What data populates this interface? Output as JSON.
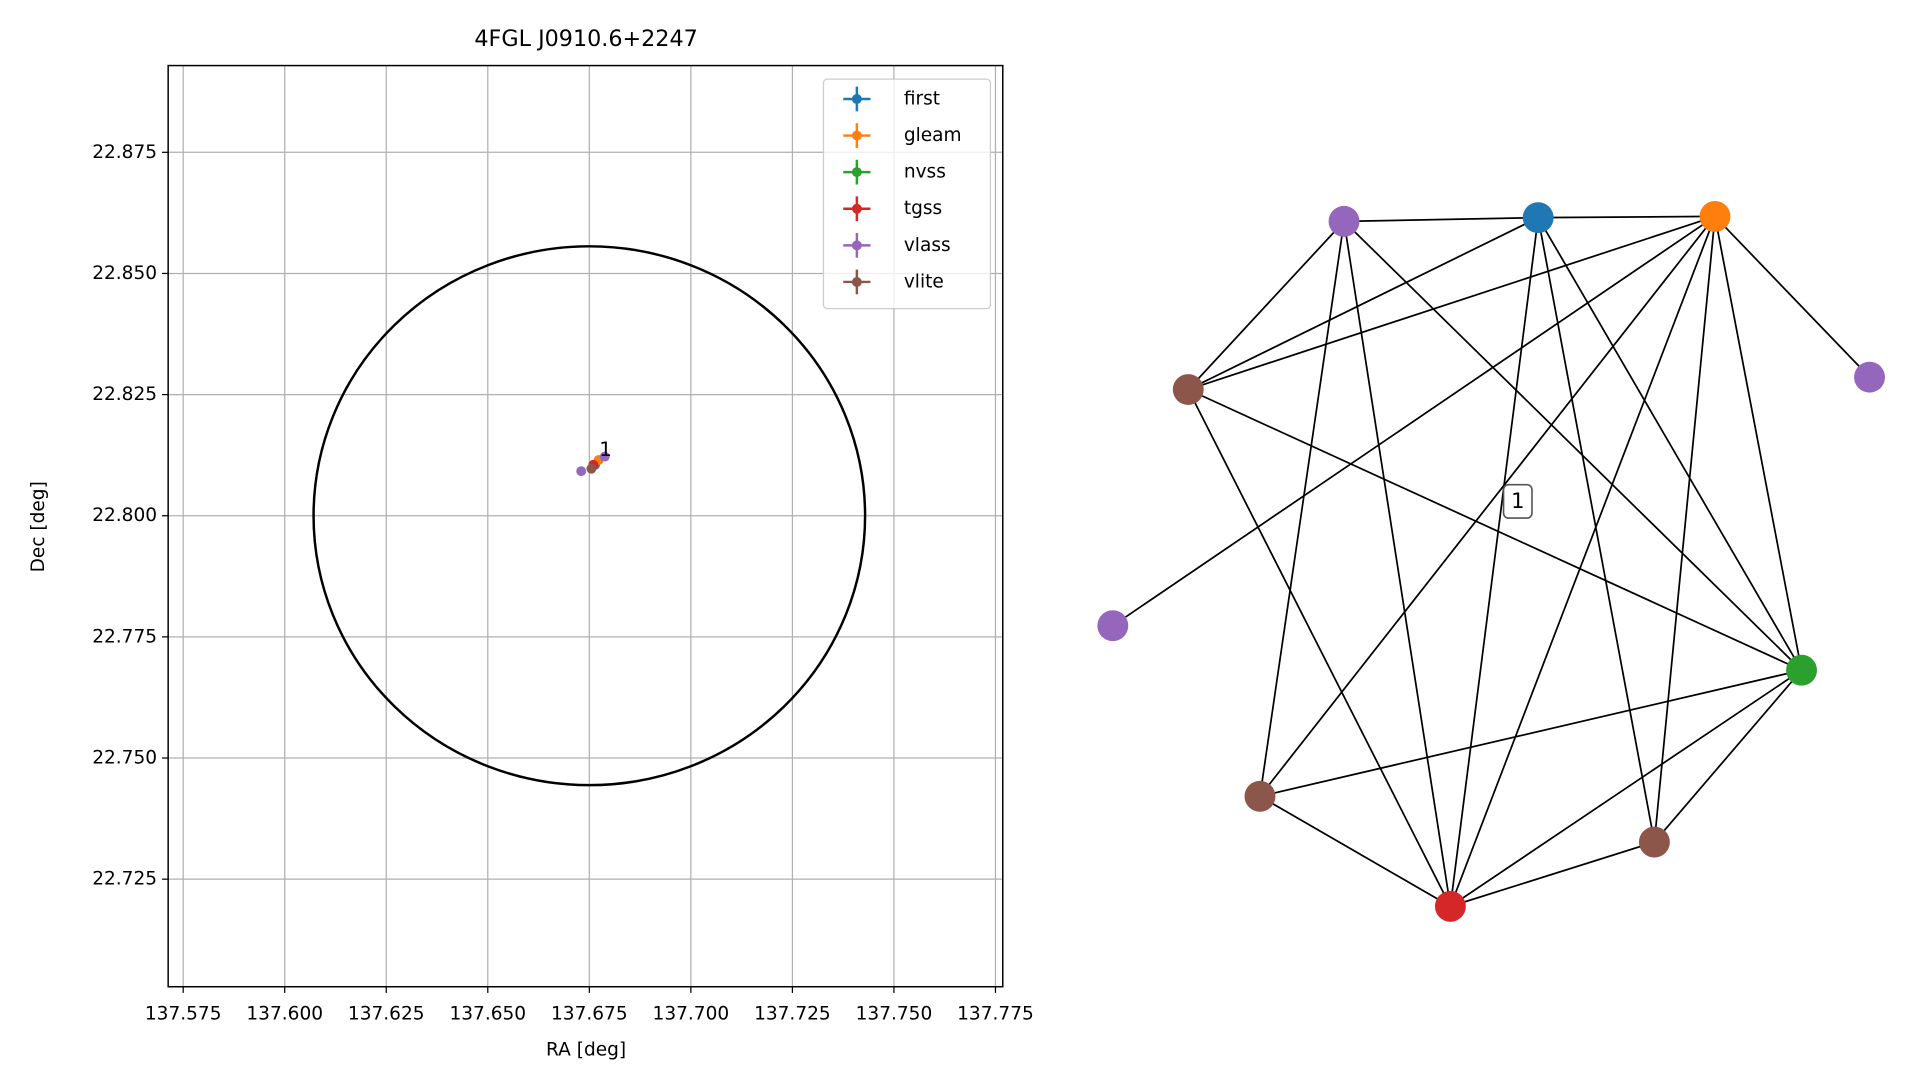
{
  "chart_data": [
    {
      "type": "scatter",
      "title": "4FGL J0910.6+2247",
      "x_label": "RA [deg]",
      "y_label": "Dec [deg]",
      "xlim": [
        137.5713,
        137.7768
      ],
      "ylim": [
        22.7028,
        22.8929
      ],
      "xticks": [
        137.575,
        {
          "value": 137.6,
          "label": "137.600"
        },
        137.625,
        {
          "value": 137.65,
          "label": "137.650"
        },
        137.675,
        {
          "value": 137.7,
          "label": "137.700"
        },
        137.725,
        {
          "value": 137.75,
          "label": "137.750"
        },
        137.775
      ],
      "yticks": [
        22.725,
        {
          "value": 22.75,
          "label": "22.750"
        },
        22.775,
        {
          "value": 22.8,
          "label": "22.800"
        },
        22.825,
        {
          "value": 22.85,
          "label": "22.850"
        },
        22.875
      ],
      "grid": true,
      "legend": "upper right",
      "region": {
        "center": [
          137.675,
          22.8
        ],
        "radius": [
          0.0679,
          0.0556
        ],
        "color": "#000000"
      },
      "series": [
        {
          "name": "first",
          "color": "#1f77b4",
          "x": [
            137.6764
          ],
          "y": [
            22.8105
          ]
        },
        {
          "name": "gleam",
          "color": "#ff7f0e",
          "x": [
            137.6773
          ],
          "y": [
            22.8115
          ]
        },
        {
          "name": "nvss",
          "color": "#2ca02c",
          "x": [
            137.676
          ],
          "y": [
            22.8105
          ]
        },
        {
          "name": "tgss",
          "color": "#d62728",
          "x": [
            137.676
          ],
          "y": [
            22.8105
          ]
        },
        {
          "name": "vlass",
          "color": "#9467bd",
          "x": [
            137.673,
            137.6788
          ],
          "y": [
            22.8092,
            22.8122
          ]
        },
        {
          "name": "vlite",
          "color": "#8c564b",
          "x": [
            137.6755
          ],
          "y": [
            22.8097
          ]
        }
      ],
      "annotation": {
        "text": "1",
        "x": 137.679,
        "y": 22.8135
      }
    },
    {
      "type": "network",
      "label": "1",
      "nodes": [
        {
          "series": 4
        },
        {
          "series": 0
        },
        {
          "series": 1
        },
        {
          "series": 4
        },
        {
          "series": 5
        },
        {
          "series": 4
        },
        {
          "series": 2
        },
        {
          "series": 5
        },
        {
          "series": 5
        },
        {
          "series": 3
        }
      ],
      "edges": [
        [
          0,
          1
        ],
        [
          1,
          2
        ],
        [
          0,
          4
        ],
        [
          0,
          7
        ],
        [
          0,
          9
        ],
        [
          0,
          6
        ],
        [
          4,
          1
        ],
        [
          4,
          2
        ],
        [
          1,
          9
        ],
        [
          1,
          8
        ],
        [
          1,
          6
        ],
        [
          2,
          3
        ],
        [
          2,
          5
        ],
        [
          2,
          6
        ],
        [
          2,
          8
        ],
        [
          2,
          9
        ],
        [
          2,
          7
        ],
        [
          4,
          6
        ],
        [
          4,
          9
        ],
        [
          7,
          6
        ],
        [
          7,
          9
        ],
        [
          9,
          8
        ],
        [
          9,
          6
        ],
        [
          8,
          6
        ]
      ]
    }
  ]
}
